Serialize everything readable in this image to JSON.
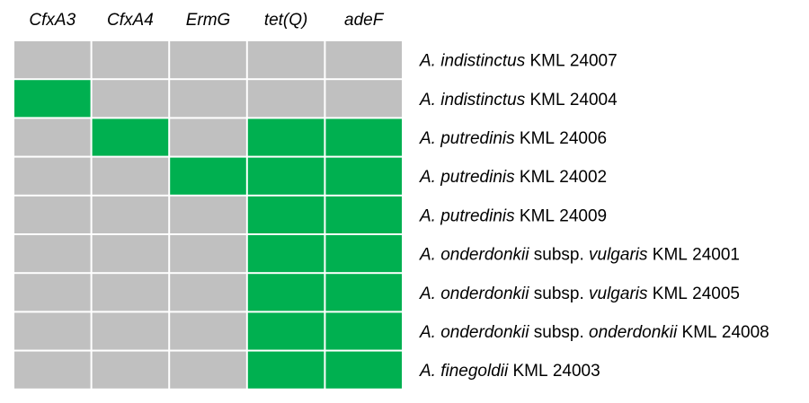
{
  "chart_data": {
    "type": "heatmap",
    "title": "",
    "xlabel": "",
    "ylabel": "",
    "columns": [
      "CfxA3",
      "CfxA4",
      "ErmG",
      "tet(Q)",
      "adeF"
    ],
    "rows": [
      {
        "segments": [
          {
            "text": "A. indistinctus",
            "italic": true
          },
          {
            "text": " KML 24007",
            "italic": false
          }
        ]
      },
      {
        "segments": [
          {
            "text": "A. indistinctus",
            "italic": true
          },
          {
            "text": " KML 24004",
            "italic": false
          }
        ]
      },
      {
        "segments": [
          {
            "text": "A. putredinis",
            "italic": true
          },
          {
            "text": " KML 24006",
            "italic": false
          }
        ]
      },
      {
        "segments": [
          {
            "text": "A. putredinis",
            "italic": true
          },
          {
            "text": " KML 24002",
            "italic": false
          }
        ]
      },
      {
        "segments": [
          {
            "text": "A. putredinis",
            "italic": true
          },
          {
            "text": " KML 24009",
            "italic": false
          }
        ]
      },
      {
        "segments": [
          {
            "text": "A. onderdonkii",
            "italic": true
          },
          {
            "text": " subsp. ",
            "italic": false
          },
          {
            "text": "vulgaris",
            "italic": true
          },
          {
            "text": " KML 24001",
            "italic": false
          }
        ]
      },
      {
        "segments": [
          {
            "text": "A. onderdonkii",
            "italic": true
          },
          {
            "text": " subsp. ",
            "italic": false
          },
          {
            "text": "vulgaris",
            "italic": true
          },
          {
            "text": " KML 24005",
            "italic": false
          }
        ]
      },
      {
        "segments": [
          {
            "text": "A. onderdonkii",
            "italic": true
          },
          {
            "text": " subsp. ",
            "italic": false
          },
          {
            "text": "onderdonkii",
            "italic": true
          },
          {
            "text": " KML 24008",
            "italic": false
          }
        ]
      },
      {
        "segments": [
          {
            "text": "A. finegoldii",
            "italic": true
          },
          {
            "text": " KML 24003",
            "italic": false
          }
        ]
      }
    ],
    "values": [
      [
        0,
        0,
        0,
        0,
        0
      ],
      [
        1,
        0,
        0,
        0,
        0
      ],
      [
        0,
        1,
        0,
        1,
        1
      ],
      [
        0,
        0,
        1,
        1,
        1
      ],
      [
        0,
        0,
        0,
        1,
        1
      ],
      [
        0,
        0,
        0,
        1,
        1
      ],
      [
        0,
        0,
        0,
        1,
        1
      ],
      [
        0,
        0,
        0,
        1,
        1
      ],
      [
        0,
        0,
        0,
        1,
        1
      ]
    ],
    "colors": {
      "present": "#00b050",
      "absent": "#c0c0c0",
      "grid": "#ffffff"
    },
    "grid": true,
    "legend": "none"
  }
}
